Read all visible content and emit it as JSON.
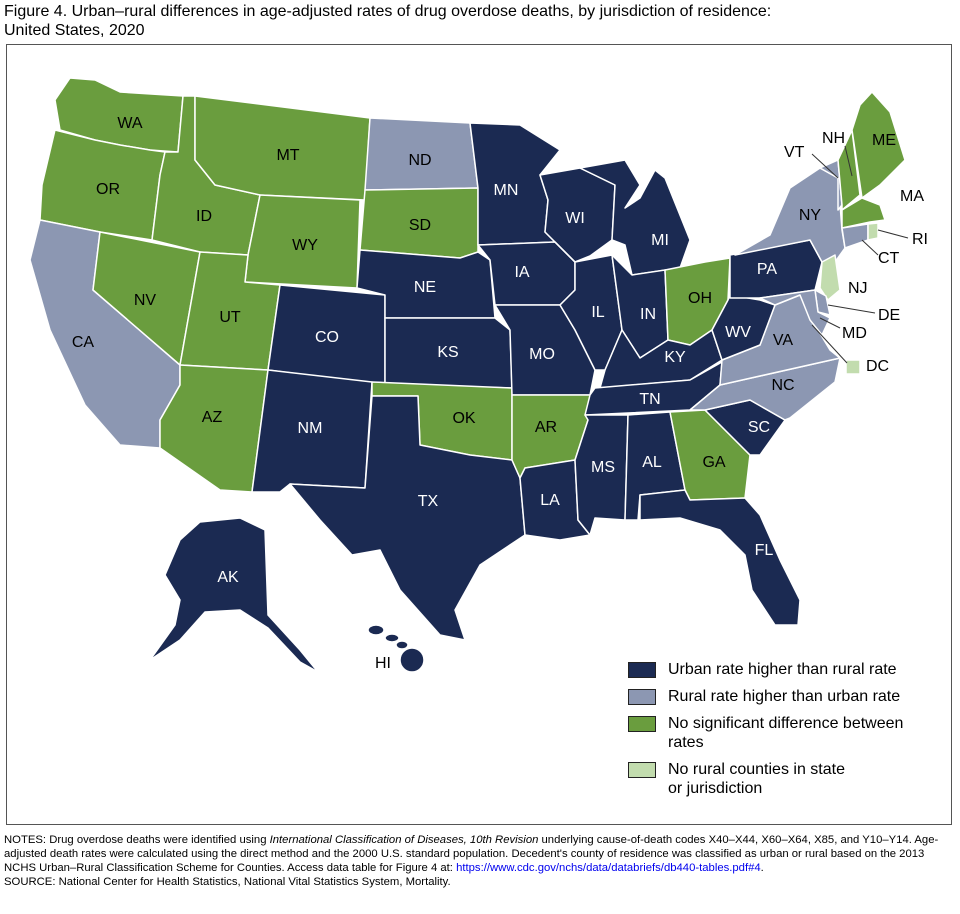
{
  "title": {
    "line1": "Figure 4. Urban–rural differences in age-adjusted rates of drug overdose deaths, by jurisdiction of residence:",
    "line2": "United States, 2020"
  },
  "colors": {
    "urban_higher": "#1b2a52",
    "rural_higher": "#8c97b2",
    "no_difference": "#6a9d3e",
    "no_rural": "#c2dcae"
  },
  "legend": [
    {
      "key": "urban_higher",
      "line1": "Urban rate higher than rural rate",
      "line2": ""
    },
    {
      "key": "rural_higher",
      "line1": "Rural rate higher than urban rate",
      "line2": ""
    },
    {
      "key": "no_difference",
      "line1": "No significant difference between",
      "line2": "rates"
    },
    {
      "key": "no_rural",
      "line1": "No rural counties in state",
      "line2": "or jurisdiction"
    }
  ],
  "states": {
    "WA": "no_difference",
    "OR": "no_difference",
    "CA": "rural_higher",
    "ID": "no_difference",
    "NV": "no_difference",
    "MT": "no_difference",
    "WY": "no_difference",
    "UT": "no_difference",
    "AZ": "no_difference",
    "CO": "urban_higher",
    "NM": "urban_higher",
    "ND": "rural_higher",
    "SD": "no_difference",
    "NE": "urban_higher",
    "KS": "urban_higher",
    "OK": "no_difference",
    "TX": "urban_higher",
    "MN": "urban_higher",
    "IA": "urban_higher",
    "MO": "urban_higher",
    "AR": "no_difference",
    "LA": "urban_higher",
    "WI": "urban_higher",
    "IL": "urban_higher",
    "MI": "urban_higher",
    "IN": "urban_higher",
    "OH": "no_difference",
    "KY": "urban_higher",
    "TN": "urban_higher",
    "MS": "urban_higher",
    "AL": "urban_higher",
    "GA": "no_difference",
    "FL": "urban_higher",
    "SC": "urban_higher",
    "NC": "rural_higher",
    "VA": "rural_higher",
    "WV": "urban_higher",
    "PA": "urban_higher",
    "NY": "rural_higher",
    "VT": "rural_higher",
    "NH": "no_difference",
    "ME": "no_difference",
    "MA": "no_difference",
    "RI": "no_rural",
    "CT": "rural_higher",
    "NJ": "no_rural",
    "DE": "rural_higher",
    "MD": "rural_higher",
    "DC": "no_rural",
    "AK": "urban_higher",
    "HI": "urban_higher"
  },
  "notes": {
    "prefix": "NOTES: Drug overdose deaths were identified using ",
    "italic": "International Classification of Diseases, 10th Revision",
    "body": " underlying cause-of-death codes X40–X44, X60–X64, X85, and Y10–Y14. Age-adjusted death rates were calculated using the direct method and the 2000 U.S. standard population. Decedent's county of residence was classified as urban or rural based on the 2013 NCHS Urban–Rural Classification Scheme for Counties. Access data table for Figure 4 at: ",
    "link": "https://www.cdc.gov/nchs/data/databriefs/db440-tables.pdf#4",
    "link_suffix": ".",
    "source": "SOURCE: National Center for Health Statistics, National Vital Statistics System, Mortality."
  }
}
